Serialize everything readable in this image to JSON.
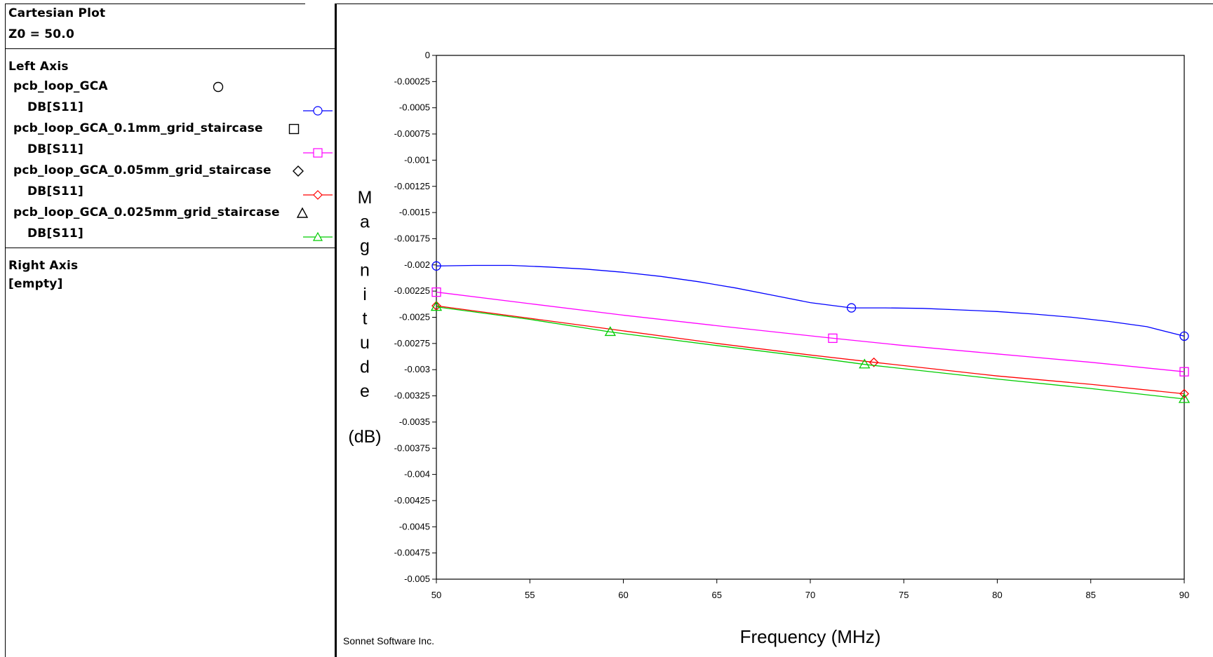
{
  "panel": {
    "title": "Cartesian Plot",
    "z0": "Z0 = 50.0",
    "left_axis_heading": "Left Axis",
    "right_axis_heading": "Right Axis",
    "right_axis_empty": "[empty]",
    "projects": [
      {
        "name": "pcb_loop_GCA",
        "marker": "circle",
        "trace": "DB[S11]",
        "color": "#0000ff"
      },
      {
        "name": "pcb_loop_GCA_0.1mm_grid_staircase",
        "marker": "square",
        "trace": "DB[S11]",
        "color": "#ff00ff"
      },
      {
        "name": "pcb_loop_GCA_0.05mm_grid_staircase",
        "marker": "diamond",
        "trace": "DB[S11]",
        "color": "#ff0000"
      },
      {
        "name": "pcb_loop_GCA_0.025mm_grid_staircase",
        "marker": "triangle",
        "trace": "DB[S11]",
        "color": "#00cc00"
      }
    ]
  },
  "footer": {
    "credit": "Sonnet Software Inc."
  },
  "chart_data": {
    "type": "line",
    "xlabel": "Frequency (MHz)",
    "ylabel_letters": [
      "M",
      "a",
      "g",
      "n",
      "i",
      "t",
      "u",
      "d",
      "e"
    ],
    "ylabel_unit": "(dB)",
    "xlim": [
      50,
      90
    ],
    "ylim": [
      -0.005,
      0
    ],
    "x_ticks": [
      "50",
      "55",
      "60",
      "65",
      "70",
      "75",
      "80",
      "85",
      "90"
    ],
    "y_ticks": [
      "0",
      "-0.00025",
      "-0.0005",
      "-0.00075",
      "-0.001",
      "-0.00125",
      "-0.0015",
      "-0.00175",
      "-0.002",
      "-0.00225",
      "-0.0025",
      "-0.00275",
      "-0.003",
      "-0.00325",
      "-0.0035",
      "-0.00375",
      "-0.004",
      "-0.00425",
      "-0.0045",
      "-0.00475",
      "-0.005"
    ],
    "grid": false,
    "series": [
      {
        "name": "pcb_loop_GCA DB[S11]",
        "color": "#0000ff",
        "marker": "circle",
        "points": [
          [
            50,
            -0.00201
          ],
          [
            52,
            -0.002005
          ],
          [
            54,
            -0.002005
          ],
          [
            56,
            -0.00202
          ],
          [
            58,
            -0.00204
          ],
          [
            60,
            -0.00207
          ],
          [
            62,
            -0.00211
          ],
          [
            64,
            -0.00216
          ],
          [
            66,
            -0.00222
          ],
          [
            68,
            -0.00229
          ],
          [
            70,
            -0.00236
          ],
          [
            72.2,
            -0.00241
          ],
          [
            74,
            -0.00241
          ],
          [
            76,
            -0.002415
          ],
          [
            78,
            -0.00243
          ],
          [
            80,
            -0.002445
          ],
          [
            82,
            -0.00247
          ],
          [
            84,
            -0.0025
          ],
          [
            86,
            -0.00254
          ],
          [
            88,
            -0.00259
          ],
          [
            90,
            -0.00268
          ]
        ],
        "markers_x": [
          50,
          72.2,
          90
        ]
      },
      {
        "name": "pcb_loop_GCA_0.1mm_grid_staircase DB[S11]",
        "color": "#ff00ff",
        "marker": "square",
        "points": [
          [
            50,
            -0.00226
          ],
          [
            55,
            -0.00237
          ],
          [
            60,
            -0.00248
          ],
          [
            65,
            -0.00258
          ],
          [
            71.2,
            -0.0027
          ],
          [
            75,
            -0.00277
          ],
          [
            80,
            -0.00285
          ],
          [
            85,
            -0.00293
          ],
          [
            90,
            -0.00302
          ]
        ],
        "markers_x": [
          50,
          71.2,
          90
        ]
      },
      {
        "name": "pcb_loop_GCA_0.05mm_grid_staircase DB[S11]",
        "color": "#ff0000",
        "marker": "diamond",
        "points": [
          [
            50,
            -0.00239
          ],
          [
            55,
            -0.00251
          ],
          [
            60,
            -0.00263
          ],
          [
            65,
            -0.00275
          ],
          [
            70,
            -0.00286
          ],
          [
            73.4,
            -0.00293
          ],
          [
            80,
            -0.00306
          ],
          [
            85,
            -0.00314
          ],
          [
            90,
            -0.00323
          ]
        ],
        "markers_x": [
          50,
          73.4,
          90
        ]
      },
      {
        "name": "pcb_loop_GCA_0.025mm_grid_staircase DB[S11]",
        "color": "#00cc00",
        "marker": "triangle",
        "points": [
          [
            50,
            -0.0024
          ],
          [
            55,
            -0.00252
          ],
          [
            59.3,
            -0.00264
          ],
          [
            65,
            -0.00277
          ],
          [
            70,
            -0.00288
          ],
          [
            72.9,
            -0.00295
          ],
          [
            80,
            -0.00309
          ],
          [
            85,
            -0.00318
          ],
          [
            90,
            -0.00328
          ]
        ],
        "markers_x": [
          50,
          59.3,
          72.9,
          90
        ]
      }
    ]
  }
}
